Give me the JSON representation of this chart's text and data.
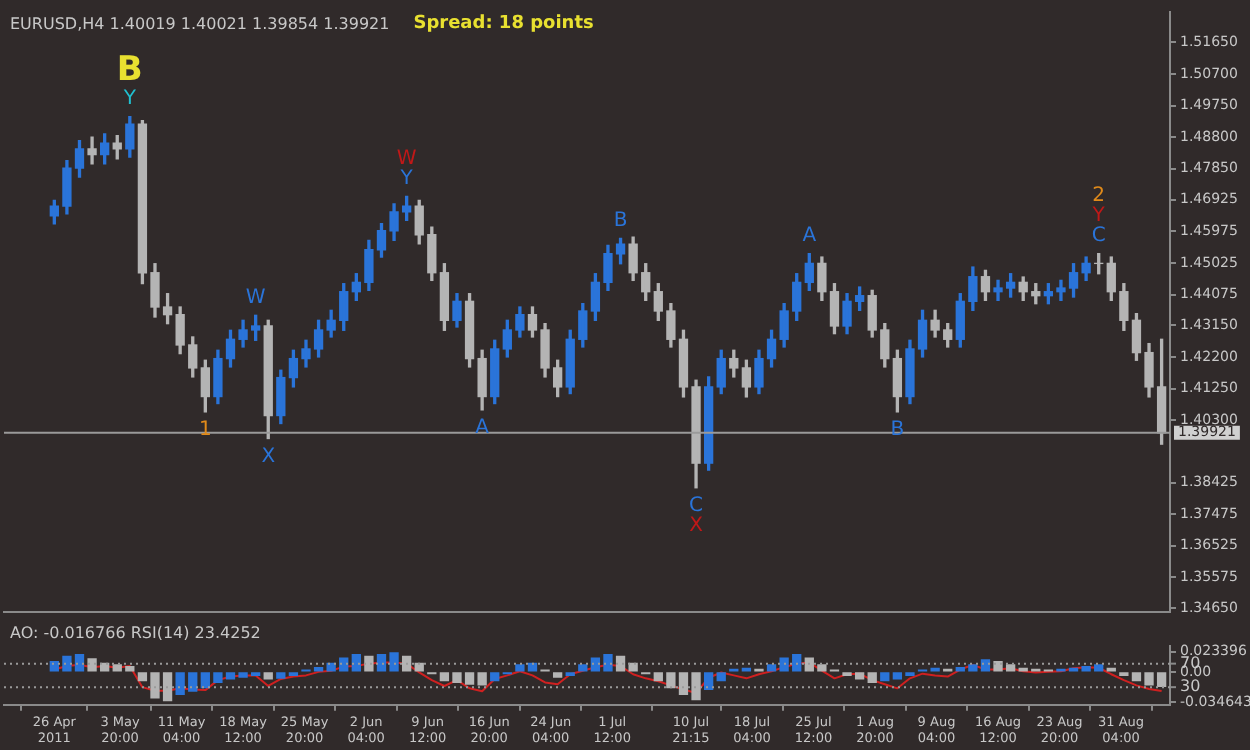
{
  "chart_data": [
    {
      "type": "candlestick",
      "title": "EURUSD,H4 1.40019 1.40021 1.39854 1.39921",
      "x": [
        "2011-04-26T00:00",
        "2011-04-27T12:00",
        "2011-04-29T00:00",
        "2011-04-30T12:00",
        "2011-05-02T00:00",
        "2011-05-03T12:00",
        "2011-05-05T00:00",
        "2011-05-06T12:00",
        "2011-05-08T00:00",
        "2011-05-09T12:00",
        "2011-05-11T00:00",
        "2011-05-12T12:00",
        "2011-05-14T00:00",
        "2011-05-15T12:00",
        "2011-05-17T00:00",
        "2011-05-18T12:00",
        "2011-05-20T00:00",
        "2011-05-21T12:00",
        "2011-05-23T00:00",
        "2011-05-24T12:00",
        "2011-05-26T00:00",
        "2011-05-27T12:00",
        "2011-05-29T00:00",
        "2011-05-30T12:00",
        "2011-06-01T00:00",
        "2011-06-02T12:00",
        "2011-06-04T00:00",
        "2011-06-05T12:00",
        "2011-06-07T00:00",
        "2011-06-08T12:00",
        "2011-06-10T00:00",
        "2011-06-11T12:00",
        "2011-06-13T00:00",
        "2011-06-14T12:00",
        "2011-06-16T00:00",
        "2011-06-17T12:00",
        "2011-06-19T00:00",
        "2011-06-20T12:00",
        "2011-06-22T00:00",
        "2011-06-23T12:00",
        "2011-06-25T00:00",
        "2011-06-26T12:00",
        "2011-06-28T00:00",
        "2011-06-29T12:00",
        "2011-07-01T00:00",
        "2011-07-02T12:00",
        "2011-07-04T00:00",
        "2011-07-05T12:00",
        "2011-07-07T00:00",
        "2011-07-08T12:00",
        "2011-07-10T00:00",
        "2011-07-11T12:00",
        "2011-07-13T00:00",
        "2011-07-14T12:00",
        "2011-07-16T00:00",
        "2011-07-17T12:00",
        "2011-07-19T00:00",
        "2011-07-20T12:00",
        "2011-07-22T00:00",
        "2011-07-23T12:00",
        "2011-07-25T00:00",
        "2011-07-26T12:00",
        "2011-07-28T00:00",
        "2011-07-29T12:00",
        "2011-07-31T00:00",
        "2011-08-01T12:00",
        "2011-08-03T00:00",
        "2011-08-04T12:00",
        "2011-08-06T00:00",
        "2011-08-07T12:00",
        "2011-08-09T00:00",
        "2011-08-10T12:00",
        "2011-08-12T00:00",
        "2011-08-13T12:00",
        "2011-08-15T00:00",
        "2011-08-16T12:00",
        "2011-08-18T00:00",
        "2011-08-19T12:00",
        "2011-08-21T00:00",
        "2011-08-22T12:00",
        "2011-08-24T00:00",
        "2011-08-25T12:00",
        "2011-08-27T00:00",
        "2011-08-28T12:00",
        "2011-08-30T00:00",
        "2011-08-31T12:00",
        "2011-09-02T00:00",
        "2011-09-03T12:00",
        "2011-09-05T00:00"
      ],
      "ohlc": [
        [
          1.4644,
          1.469,
          1.462,
          1.4673
        ],
        [
          1.4673,
          1.481,
          1.465,
          1.4787
        ],
        [
          1.4787,
          1.487,
          1.476,
          1.4845
        ],
        [
          1.4845,
          1.488,
          1.48,
          1.4828
        ],
        [
          1.4828,
          1.489,
          1.48,
          1.4862
        ],
        [
          1.4862,
          1.4885,
          1.4815,
          1.4845
        ],
        [
          1.4845,
          1.4942,
          1.482,
          1.4919
        ],
        [
          1.4919,
          1.493,
          1.444,
          1.4473
        ],
        [
          1.4473,
          1.45,
          1.434,
          1.437
        ],
        [
          1.437,
          1.441,
          1.432,
          1.4347
        ],
        [
          1.4347,
          1.437,
          1.423,
          1.4256
        ],
        [
          1.4256,
          1.428,
          1.416,
          1.4187
        ],
        [
          1.4187,
          1.421,
          1.4055,
          1.4101
        ],
        [
          1.4101,
          1.424,
          1.408,
          1.4215
        ],
        [
          1.4215,
          1.43,
          1.419,
          1.4273
        ],
        [
          1.4273,
          1.433,
          1.425,
          1.4301
        ],
        [
          1.4301,
          1.4345,
          1.427,
          1.4313
        ],
        [
          1.4313,
          1.433,
          1.3975,
          1.4044
        ],
        [
          1.4044,
          1.418,
          1.402,
          1.4158
        ],
        [
          1.4158,
          1.424,
          1.413,
          1.4215
        ],
        [
          1.4215,
          1.427,
          1.419,
          1.4244
        ],
        [
          1.4244,
          1.433,
          1.422,
          1.4301
        ],
        [
          1.4301,
          1.436,
          1.428,
          1.433
        ],
        [
          1.433,
          1.444,
          1.43,
          1.4416
        ],
        [
          1.4416,
          1.447,
          1.439,
          1.4444
        ],
        [
          1.4444,
          1.457,
          1.442,
          1.4542
        ],
        [
          1.4542,
          1.462,
          1.452,
          1.4599
        ],
        [
          1.4599,
          1.468,
          1.457,
          1.4656
        ],
        [
          1.4656,
          1.4702,
          1.463,
          1.4673
        ],
        [
          1.4673,
          1.469,
          1.456,
          1.4587
        ],
        [
          1.4587,
          1.461,
          1.445,
          1.4473
        ],
        [
          1.4473,
          1.45,
          1.43,
          1.433
        ],
        [
          1.433,
          1.441,
          1.431,
          1.4387
        ],
        [
          1.4387,
          1.441,
          1.419,
          1.4215
        ],
        [
          1.4215,
          1.424,
          1.4061,
          1.4101
        ],
        [
          1.4101,
          1.427,
          1.408,
          1.4244
        ],
        [
          1.4244,
          1.433,
          1.422,
          1.4301
        ],
        [
          1.4301,
          1.437,
          1.428,
          1.4347
        ],
        [
          1.4347,
          1.437,
          1.428,
          1.4301
        ],
        [
          1.4301,
          1.432,
          1.416,
          1.4187
        ],
        [
          1.4187,
          1.421,
          1.4101,
          1.413
        ],
        [
          1.413,
          1.43,
          1.411,
          1.4273
        ],
        [
          1.4273,
          1.438,
          1.425,
          1.4358
        ],
        [
          1.4358,
          1.447,
          1.433,
          1.4444
        ],
        [
          1.4444,
          1.4555,
          1.442,
          1.453
        ],
        [
          1.453,
          1.4576,
          1.45,
          1.4559
        ],
        [
          1.4559,
          1.458,
          1.445,
          1.4473
        ],
        [
          1.4473,
          1.45,
          1.439,
          1.4416
        ],
        [
          1.4416,
          1.444,
          1.433,
          1.4358
        ],
        [
          1.4358,
          1.438,
          1.425,
          1.4273
        ],
        [
          1.4273,
          1.43,
          1.41,
          1.413
        ],
        [
          1.413,
          1.415,
          1.3827,
          1.3901
        ],
        [
          1.3901,
          1.416,
          1.388,
          1.413
        ],
        [
          1.413,
          1.424,
          1.411,
          1.4215
        ],
        [
          1.4215,
          1.424,
          1.416,
          1.4187
        ],
        [
          1.4187,
          1.421,
          1.41,
          1.413
        ],
        [
          1.413,
          1.424,
          1.411,
          1.4215
        ],
        [
          1.4215,
          1.43,
          1.419,
          1.4273
        ],
        [
          1.4273,
          1.438,
          1.425,
          1.4358
        ],
        [
          1.4358,
          1.447,
          1.433,
          1.4444
        ],
        [
          1.4444,
          1.453,
          1.442,
          1.4501
        ],
        [
          1.4501,
          1.452,
          1.439,
          1.4416
        ],
        [
          1.4416,
          1.444,
          1.429,
          1.4313
        ],
        [
          1.4313,
          1.441,
          1.429,
          1.4387
        ],
        [
          1.4387,
          1.443,
          1.436,
          1.4404
        ],
        [
          1.4404,
          1.442,
          1.428,
          1.4301
        ],
        [
          1.4301,
          1.432,
          1.419,
          1.4215
        ],
        [
          1.4215,
          1.424,
          1.4055,
          1.4101
        ],
        [
          1.4101,
          1.427,
          1.408,
          1.4244
        ],
        [
          1.4244,
          1.436,
          1.422,
          1.433
        ],
        [
          1.433,
          1.436,
          1.428,
          1.4301
        ],
        [
          1.4301,
          1.432,
          1.425,
          1.4273
        ],
        [
          1.4273,
          1.441,
          1.425,
          1.4387
        ],
        [
          1.4387,
          1.449,
          1.436,
          1.4461
        ],
        [
          1.4461,
          1.448,
          1.439,
          1.4416
        ],
        [
          1.4416,
          1.445,
          1.439,
          1.4427
        ],
        [
          1.4427,
          1.447,
          1.44,
          1.4444
        ],
        [
          1.4444,
          1.446,
          1.439,
          1.4416
        ],
        [
          1.4416,
          1.444,
          1.438,
          1.4404
        ],
        [
          1.4404,
          1.444,
          1.438,
          1.4416
        ],
        [
          1.4416,
          1.445,
          1.439,
          1.4427
        ],
        [
          1.4427,
          1.45,
          1.44,
          1.4473
        ],
        [
          1.4473,
          1.452,
          1.445,
          1.4501
        ],
        [
          1.4501,
          1.453,
          1.447,
          1.4501
        ],
        [
          1.4501,
          1.452,
          1.439,
          1.4416
        ],
        [
          1.4416,
          1.444,
          1.43,
          1.433
        ],
        [
          1.433,
          1.435,
          1.421,
          1.4233
        ],
        [
          1.4233,
          1.426,
          1.41,
          1.413
        ],
        [
          1.413,
          1.4273,
          1.3958,
          1.39921
        ]
      ],
      "colors": [
        "#2a74d9",
        "#2a74d9",
        "#2a74d9",
        "#b4b4b4",
        "#2a74d9",
        "#b4b4b4",
        "#2a74d9",
        "#b4b4b4",
        "#b4b4b4",
        "#b4b4b4",
        "#b4b4b4",
        "#b4b4b4",
        "#b4b4b4",
        "#2a74d9",
        "#2a74d9",
        "#2a74d9",
        "#2a74d9",
        "#b4b4b4",
        "#2a74d9",
        "#2a74d9",
        "#2a74d9",
        "#2a74d9",
        "#2a74d9",
        "#2a74d9",
        "#2a74d9",
        "#2a74d9",
        "#2a74d9",
        "#2a74d9",
        "#2a74d9",
        "#b4b4b4",
        "#b4b4b4",
        "#b4b4b4",
        "#2a74d9",
        "#b4b4b4",
        "#b4b4b4",
        "#2a74d9",
        "#2a74d9",
        "#2a74d9",
        "#b4b4b4",
        "#b4b4b4",
        "#b4b4b4",
        "#2a74d9",
        "#2a74d9",
        "#2a74d9",
        "#2a74d9",
        "#2a74d9",
        "#b4b4b4",
        "#b4b4b4",
        "#b4b4b4",
        "#b4b4b4",
        "#b4b4b4",
        "#b4b4b4",
        "#2a74d9",
        "#2a74d9",
        "#b4b4b4",
        "#b4b4b4",
        "#2a74d9",
        "#2a74d9",
        "#2a74d9",
        "#2a74d9",
        "#2a74d9",
        "#b4b4b4",
        "#b4b4b4",
        "#2a74d9",
        "#2a74d9",
        "#b4b4b4",
        "#b4b4b4",
        "#b4b4b4",
        "#2a74d9",
        "#2a74d9",
        "#b4b4b4",
        "#b4b4b4",
        "#2a74d9",
        "#2a74d9",
        "#b4b4b4",
        "#2a74d9",
        "#2a74d9",
        "#b4b4b4",
        "#b4b4b4",
        "#2a74d9",
        "#2a74d9",
        "#2a74d9",
        "#2a74d9",
        "#b4b4b4",
        "#b4b4b4",
        "#b4b4b4",
        "#b4b4b4",
        "#b4b4b4",
        "#b4b4b4"
      ],
      "annotations": [
        "Spread: 18 points",
        {
          "text": "Y",
          "x": "2011-05-05T00:00",
          "y": 1.4942
        },
        {
          "text": "B",
          "x": "2011-05-05T00:00",
          "y": 1.4942
        },
        {
          "text": "Y",
          "x": "2011-06-07T00:00",
          "y": 1.4702
        },
        {
          "text": "W",
          "x": "2011-06-07T00:00",
          "y": 1.4702
        },
        {
          "text": "W",
          "x": "2011-05-20T00:00",
          "y": 1.4345
        },
        {
          "text": "X",
          "x": "2011-05-21T12:00",
          "y": 1.3975
        },
        {
          "text": "1",
          "x": "2011-05-14T00:00",
          "y": 1.4055
        },
        {
          "text": "A",
          "x": "2011-06-16T00:00",
          "y": 1.4061
        },
        {
          "text": "B",
          "x": "2011-07-02T12:00",
          "y": 1.4576
        },
        {
          "text": "C",
          "x": "2011-07-11T12:00",
          "y": 1.3827
        },
        {
          "text": "X",
          "x": "2011-07-11T12:00",
          "y": 1.3827
        },
        {
          "text": "A",
          "x": "2011-07-25T00:00",
          "y": 1.453
        },
        {
          "text": "B",
          "x": "2011-08-04T12:00",
          "y": 1.4055
        },
        {
          "text": "C",
          "x": "2011-08-28T12:00",
          "y": 1.453
        },
        {
          "text": "Y",
          "x": "2011-08-28T12:00",
          "y": 1.453
        },
        {
          "text": "2",
          "x": "2011-08-28T12:00",
          "y": 1.453
        }
      ],
      "xlim": [
        "2011-04-20T00:00",
        "2011-09-06T00:00"
      ],
      "ylim": [
        1.3455,
        1.5255
      ],
      "yticks": [
        {
          "value": 1.5165,
          "label": "1.51650"
        },
        {
          "value": 1.507,
          "label": "1.50700"
        },
        {
          "value": 1.4975,
          "label": "1.49750"
        },
        {
          "value": 1.488,
          "label": "1.48800"
        },
        {
          "value": 1.4785,
          "label": "1.47850"
        },
        {
          "value": 1.46925,
          "label": "1.46925"
        },
        {
          "value": 1.45975,
          "label": "1.45975"
        },
        {
          "value": 1.45025,
          "label": "1.45025"
        },
        {
          "value": 1.44075,
          "label": "1.44075"
        },
        {
          "value": 1.4315,
          "label": "1.43150"
        },
        {
          "value": 1.422,
          "label": "1.42200"
        },
        {
          "value": 1.4125,
          "label": "1.41250"
        },
        {
          "value": 1.403,
          "label": "1.40300"
        },
        {
          "value": 1.38425,
          "label": "1.38425"
        },
        {
          "value": 1.37475,
          "label": "1.37475"
        },
        {
          "value": 1.36525,
          "label": "1.36525"
        },
        {
          "value": 1.35575,
          "label": "1.35575"
        },
        {
          "value": 1.3465,
          "label": "1.34650"
        }
      ],
      "ref_lines": [
        {
          "axis": "y",
          "value": 1.39921,
          "label": "1.39921",
          "color": "#9a9a9a"
        }
      ],
      "tick_labels": "y",
      "grid": false,
      "legend": false
    },
    {
      "type": "bar",
      "title": "AO: -0.016766 RSI(14) 23.4252",
      "x": [
        "2011-04-26T00:00",
        "2011-04-27T12:00",
        "2011-04-29T00:00",
        "2011-04-30T12:00",
        "2011-05-02T00:00",
        "2011-05-03T12:00",
        "2011-05-05T00:00",
        "2011-05-06T12:00",
        "2011-05-08T00:00",
        "2011-05-09T12:00",
        "2011-05-11T00:00",
        "2011-05-12T12:00",
        "2011-05-14T00:00",
        "2011-05-15T12:00",
        "2011-05-17T00:00",
        "2011-05-18T12:00",
        "2011-05-20T00:00",
        "2011-05-21T12:00",
        "2011-05-23T00:00",
        "2011-05-24T12:00",
        "2011-05-26T00:00",
        "2011-05-27T12:00",
        "2011-05-29T00:00",
        "2011-05-30T12:00",
        "2011-06-01T00:00",
        "2011-06-02T12:00",
        "2011-06-04T00:00",
        "2011-06-05T12:00",
        "2011-06-07T00:00",
        "2011-06-08T12:00",
        "2011-06-10T00:00",
        "2011-06-11T12:00",
        "2011-06-13T00:00",
        "2011-06-14T12:00",
        "2011-06-16T00:00",
        "2011-06-17T12:00",
        "2011-06-19T00:00",
        "2011-06-20T12:00",
        "2011-06-22T00:00",
        "2011-06-23T12:00",
        "2011-06-25T00:00",
        "2011-06-26T12:00",
        "2011-06-28T00:00",
        "2011-06-29T12:00",
        "2011-07-01T00:00",
        "2011-07-02T12:00",
        "2011-07-04T00:00",
        "2011-07-05T12:00",
        "2011-07-07T00:00",
        "2011-07-08T12:00",
        "2011-07-10T00:00",
        "2011-07-11T12:00",
        "2011-07-13T00:00",
        "2011-07-14T12:00",
        "2011-07-16T00:00",
        "2011-07-17T12:00",
        "2011-07-19T00:00",
        "2011-07-20T12:00",
        "2011-07-22T00:00",
        "2011-07-23T12:00",
        "2011-07-25T00:00",
        "2011-07-26T12:00",
        "2011-07-28T00:00",
        "2011-07-29T12:00",
        "2011-07-31T00:00",
        "2011-08-01T12:00",
        "2011-08-03T00:00",
        "2011-08-04T12:00",
        "2011-08-06T00:00",
        "2011-08-07T12:00",
        "2011-08-09T00:00",
        "2011-08-10T12:00",
        "2011-08-12T00:00",
        "2011-08-13T12:00",
        "2011-08-15T00:00",
        "2011-08-16T12:00",
        "2011-08-18T00:00",
        "2011-08-19T12:00",
        "2011-08-21T00:00",
        "2011-08-22T12:00",
        "2011-08-24T00:00",
        "2011-08-25T12:00",
        "2011-08-27T00:00",
        "2011-08-28T12:00",
        "2011-08-30T00:00",
        "2011-08-31T12:00",
        "2011-09-02T00:00",
        "2011-09-03T12:00",
        "2011-09-05T00:00"
      ],
      "series": [
        {
          "type": "bar",
          "values": [
            0.012,
            0.018,
            0.02,
            0.015,
            0.01,
            0.008,
            0.006,
            -0.01,
            -0.03,
            -0.033,
            -0.026,
            -0.022,
            -0.018,
            -0.012,
            -0.008,
            -0.006,
            -0.004,
            -0.008,
            -0.007,
            -0.004,
            0.002,
            0.005,
            0.01,
            0.016,
            0.02,
            0.018,
            0.02,
            0.022,
            0.018,
            0.01,
            -0.002,
            -0.01,
            -0.012,
            -0.014,
            -0.015,
            -0.01,
            -0.002,
            0.008,
            0.01,
            0.002,
            -0.006,
            -0.004,
            0.008,
            0.016,
            0.02,
            0.018,
            0.01,
            -0.002,
            -0.01,
            -0.018,
            -0.026,
            -0.032,
            -0.02,
            -0.01,
            0.003,
            0.004,
            0.003,
            0.008,
            0.016,
            0.02,
            0.016,
            0.008,
            0.002,
            -0.004,
            -0.008,
            -0.012,
            -0.01,
            -0.008,
            -0.004,
            0.002,
            0.004,
            0.003,
            0.005,
            0.008,
            0.014,
            0.012,
            0.008,
            0.004,
            0.003,
            0.002,
            0.003,
            0.004,
            0.006,
            0.008,
            0.004,
            -0.004,
            -0.01,
            -0.015,
            -0.016766
          ],
          "colors": [
            "#2a74d9",
            "#2a74d9",
            "#2a74d9",
            "#b4b4b4",
            "#b4b4b4",
            "#b4b4b4",
            "#b4b4b4",
            "#b4b4b4",
            "#b4b4b4",
            "#b4b4b4",
            "#2a74d9",
            "#2a74d9",
            "#2a74d9",
            "#2a74d9",
            "#2a74d9",
            "#2a74d9",
            "#2a74d9",
            "#b4b4b4",
            "#2a74d9",
            "#2a74d9",
            "#2a74d9",
            "#2a74d9",
            "#2a74d9",
            "#2a74d9",
            "#2a74d9",
            "#b4b4b4",
            "#2a74d9",
            "#2a74d9",
            "#b4b4b4",
            "#b4b4b4",
            "#b4b4b4",
            "#b4b4b4",
            "#b4b4b4",
            "#b4b4b4",
            "#b4b4b4",
            "#2a74d9",
            "#2a74d9",
            "#2a74d9",
            "#2a74d9",
            "#b4b4b4",
            "#b4b4b4",
            "#2a74d9",
            "#2a74d9",
            "#2a74d9",
            "#2a74d9",
            "#b4b4b4",
            "#b4b4b4",
            "#b4b4b4",
            "#b4b4b4",
            "#b4b4b4",
            "#b4b4b4",
            "#b4b4b4",
            "#2a74d9",
            "#2a74d9",
            "#2a74d9",
            "#2a74d9",
            "#b4b4b4",
            "#2a74d9",
            "#2a74d9",
            "#2a74d9",
            "#b4b4b4",
            "#b4b4b4",
            "#b4b4b4",
            "#b4b4b4",
            "#b4b4b4",
            "#b4b4b4",
            "#2a74d9",
            "#2a74d9",
            "#2a74d9",
            "#2a74d9",
            "#2a74d9",
            "#b4b4b4",
            "#2a74d9",
            "#2a74d9",
            "#2a74d9",
            "#b4b4b4",
            "#b4b4b4",
            "#b4b4b4",
            "#b4b4b4",
            "#b4b4b4",
            "#2a74d9",
            "#2a74d9",
            "#2a74d9",
            "#2a74d9",
            "#b4b4b4",
            "#b4b4b4",
            "#b4b4b4",
            "#b4b4b4",
            "#b4b4b4"
          ]
        },
        {
          "type": "line",
          "axis": "y2",
          "color": "#d02020",
          "values": [
            60,
            66,
            68,
            64,
            66,
            63,
            66,
            30,
            24,
            24,
            28,
            26,
            25,
            42,
            48,
            50,
            50,
            32,
            44,
            48,
            50,
            56,
            58,
            65,
            66,
            70,
            72,
            72,
            70,
            55,
            42,
            32,
            42,
            28,
            23,
            44,
            50,
            57,
            50,
            38,
            35,
            52,
            58,
            64,
            68,
            66,
            52,
            45,
            40,
            33,
            26,
            20,
            46,
            55,
            50,
            45,
            52,
            57,
            64,
            70,
            72,
            58,
            45,
            52,
            53,
            42,
            35,
            28,
            45,
            53,
            50,
            48,
            60,
            68,
            60,
            60,
            62,
            57,
            55,
            56,
            57,
            62,
            64,
            63,
            52,
            42,
            33,
            27,
            23.4252
          ]
        }
      ],
      "xlim": [
        "2011-04-20T00:00",
        "2011-09-06T00:00"
      ],
      "xticks": [
        {
          "value": "2011-04-26T00:00",
          "label": "26 Apr 2011"
        },
        {
          "value": "2011-05-03T20:00",
          "label": "3 May 20:00"
        },
        {
          "value": "2011-05-11T04:00",
          "label": "11 May 04:00"
        },
        {
          "value": "2011-05-18T12:00",
          "label": "18 May 12:00"
        },
        {
          "value": "2011-05-25T20:00",
          "label": "25 May 20:00"
        },
        {
          "value": "2011-06-02T04:00",
          "label": "2 Jun 04:00"
        },
        {
          "value": "2011-06-09T12:00",
          "label": "9 Jun 12:00"
        },
        {
          "value": "2011-06-16T20:00",
          "label": "16 Jun 20:00"
        },
        {
          "value": "2011-06-24T04:00",
          "label": "24 Jun 04:00"
        },
        {
          "value": "2011-07-01T12:00",
          "label": "1 Jul 12:00"
        },
        {
          "value": "2011-07-10T21:15",
          "label": "10 Jul 21:15"
        },
        {
          "value": "2011-07-18T04:00",
          "label": "18 Jul 04:00"
        },
        {
          "value": "2011-07-25T12:00",
          "label": "25 Jul 12:00"
        },
        {
          "value": "2011-08-01T20:00",
          "label": "1 Aug 20:00"
        },
        {
          "value": "2011-08-09T04:00",
          "label": "9 Aug 04:00"
        },
        {
          "value": "2011-08-16T12:00",
          "label": "16 Aug 12:00"
        },
        {
          "value": "2011-08-23T20:00",
          "label": "23 Aug 20:00"
        },
        {
          "value": "2011-08-31T04:00",
          "label": "31 Aug 04:00"
        }
      ],
      "ylim": [
        -0.038,
        0.03
      ],
      "yticks": [
        {
          "value": -0.034643,
          "label": "-0.034643"
        },
        {
          "value": 0,
          "label": "0.00"
        },
        {
          "value": 0.023396,
          "label": "0.023396"
        }
      ],
      "y2lim": [
        0,
        100
      ],
      "y2ticks": [
        30,
        70
      ],
      "ref_lines": [
        {
          "axis": "y2",
          "value": 70,
          "line_style": "dotted",
          "color": "#9a9a9a"
        },
        {
          "axis": "y2",
          "value": 30,
          "line_style": "dotted",
          "color": "#9a9a9a"
        }
      ],
      "marker": "none",
      "grid": false,
      "legend": false
    }
  ]
}
